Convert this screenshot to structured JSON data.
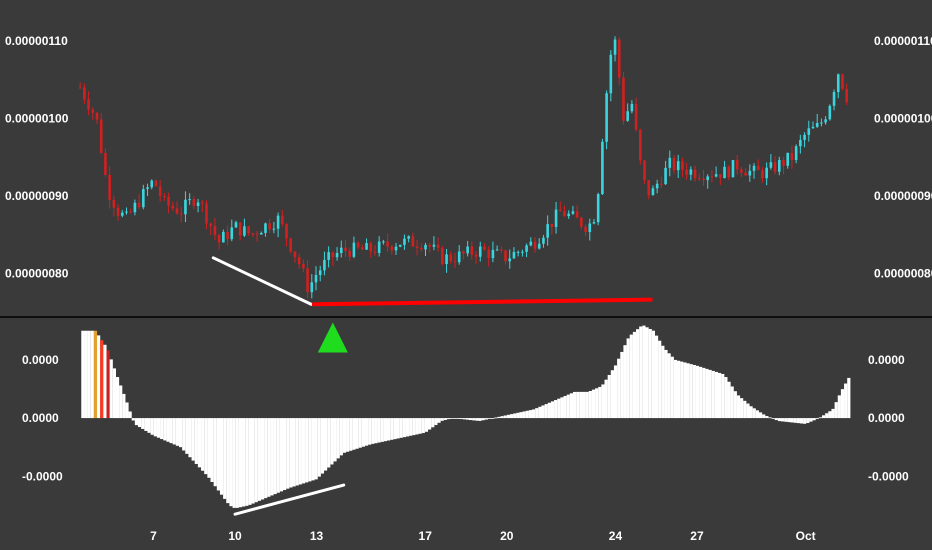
{
  "chart_data": [
    {
      "type": "candlestick",
      "panel": "price",
      "ylim": [
        7.5e-07,
        1.14e-06
      ],
      "y_ticks": [
        {
          "value": 1.1e-06,
          "label": "0.00000110"
        },
        {
          "value": 1e-06,
          "label": "0.00000100"
        },
        {
          "value": 9e-07,
          "label": "0.00000090"
        },
        {
          "value": 8e-07,
          "label": "0.00000080"
        }
      ],
      "x_ticks": [
        {
          "x": 7,
          "label": "7"
        },
        {
          "x": 10,
          "label": "10"
        },
        {
          "x": 13,
          "label": "13"
        },
        {
          "x": 17,
          "label": "17"
        },
        {
          "x": 20,
          "label": "20"
        },
        {
          "x": 24,
          "label": "24"
        },
        {
          "x": 27,
          "label": "27"
        },
        {
          "x": 31,
          "label": "Oct"
        }
      ],
      "x_range": [
        4.0,
        33.0
      ],
      "close_path": [
        [
          4.3,
          1.04e-06
        ],
        [
          4.9,
          1e-06
        ],
        [
          5.3,
          9.1e-07
        ],
        [
          5.7,
          8.8e-07
        ],
        [
          6.0,
          8.7e-07
        ],
        [
          6.6,
          9e-07
        ],
        [
          7.0,
          9.2e-07
        ],
        [
          7.4,
          8.9e-07
        ],
        [
          8.0,
          8.8e-07
        ],
        [
          8.6,
          9e-07
        ],
        [
          9.0,
          8.7e-07
        ],
        [
          9.4,
          8.4e-07
        ],
        [
          10.0,
          8.6e-07
        ],
        [
          10.6,
          8.5e-07
        ],
        [
          11.0,
          8.6e-07
        ],
        [
          11.6,
          8.7e-07
        ],
        [
          12.0,
          8.4e-07
        ],
        [
          12.4,
          8.1e-07
        ],
        [
          12.7,
          7.8e-07
        ],
        [
          13.0,
          8e-07
        ],
        [
          13.5,
          8.2e-07
        ],
        [
          14.0,
          8.3e-07
        ],
        [
          15.0,
          8.3e-07
        ],
        [
          16.0,
          8.4e-07
        ],
        [
          17.0,
          8.4e-07
        ],
        [
          17.6,
          8.2e-07
        ],
        [
          18.0,
          8.2e-07
        ],
        [
          19.0,
          8.3e-07
        ],
        [
          20.0,
          8.2e-07
        ],
        [
          21.0,
          8.4e-07
        ],
        [
          21.5,
          8.6e-07
        ],
        [
          22.0,
          8.8e-07
        ],
        [
          22.5,
          8.7e-07
        ],
        [
          23.0,
          8.6e-07
        ],
        [
          23.3,
          8.8e-07
        ],
        [
          23.5,
          9.7e-07
        ],
        [
          23.8,
          1.08e-06
        ],
        [
          24.0,
          1.1e-06
        ],
        [
          24.3,
          1e-06
        ],
        [
          24.6,
          1.02e-06
        ],
        [
          25.0,
          9.2e-07
        ],
        [
          25.3,
          9e-07
        ],
        [
          25.6,
          9.2e-07
        ],
        [
          26.0,
          9.4e-07
        ],
        [
          27.0,
          9.3e-07
        ],
        [
          28.0,
          9.3e-07
        ],
        [
          28.5,
          9.4e-07
        ],
        [
          29.0,
          9.3e-07
        ],
        [
          29.5,
          9.3e-07
        ],
        [
          30.0,
          9.4e-07
        ],
        [
          30.5,
          9.5e-07
        ],
        [
          31.0,
          9.8e-07
        ],
        [
          31.5,
          9.9e-07
        ],
        [
          31.8,
          1.01e-06
        ],
        [
          32.2,
          1.06e-06
        ],
        [
          32.6,
          1.02e-06
        ]
      ],
      "annotations": [
        {
          "type": "trendline",
          "color": "#ffffff",
          "from": [
            9.2,
            8.2e-07
          ],
          "to": [
            12.8,
            7.6e-07
          ]
        },
        {
          "type": "trendline",
          "color": "#ff0000",
          "from": [
            12.9,
            7.6e-07
          ],
          "to": [
            25.3,
            7.66e-07
          ]
        }
      ]
    },
    {
      "type": "histogram",
      "panel": "oscillator",
      "ylim": [
        -1.75,
        1.65
      ],
      "y_ticks": [
        {
          "value": 1.0,
          "label": "0.0000"
        },
        {
          "value": 0.0,
          "label": "0.0000"
        },
        {
          "value": -1.0,
          "label": "-0.0000"
        }
      ],
      "x_range": [
        4.0,
        33.0
      ],
      "value_path": [
        [
          4.4,
          1.5
        ],
        [
          4.9,
          1.5
        ],
        [
          5.0,
          1.4
        ],
        [
          5.3,
          1.2
        ],
        [
          5.6,
          0.8
        ],
        [
          6.0,
          0.3
        ],
        [
          6.3,
          -0.1
        ],
        [
          7.0,
          -0.3
        ],
        [
          8.0,
          -0.5
        ],
        [
          9.0,
          -1.0
        ],
        [
          9.8,
          -1.5
        ],
        [
          10.0,
          -1.55
        ],
        [
          10.5,
          -1.5
        ],
        [
          11.0,
          -1.4
        ],
        [
          12.0,
          -1.2
        ],
        [
          13.0,
          -1.05
        ],
        [
          14.0,
          -0.6
        ],
        [
          15.0,
          -0.45
        ],
        [
          16.0,
          -0.35
        ],
        [
          17.0,
          -0.25
        ],
        [
          17.6,
          -0.05
        ],
        [
          18.0,
          0.0
        ],
        [
          19.0,
          -0.05
        ],
        [
          20.0,
          0.05
        ],
        [
          21.0,
          0.15
        ],
        [
          22.0,
          0.35
        ],
        [
          22.5,
          0.45
        ],
        [
          23.0,
          0.45
        ],
        [
          23.5,
          0.55
        ],
        [
          24.0,
          0.9
        ],
        [
          24.5,
          1.4
        ],
        [
          25.0,
          1.6
        ],
        [
          25.4,
          1.5
        ],
        [
          25.8,
          1.2
        ],
        [
          26.2,
          1.0
        ],
        [
          27.0,
          0.9
        ],
        [
          28.0,
          0.75
        ],
        [
          28.5,
          0.4
        ],
        [
          29.0,
          0.2
        ],
        [
          29.5,
          0.05
        ],
        [
          30.0,
          -0.05
        ],
        [
          31.0,
          -0.1
        ],
        [
          31.5,
          0.0
        ],
        [
          32.0,
          0.15
        ],
        [
          32.3,
          0.45
        ],
        [
          32.6,
          0.7
        ]
      ],
      "bar_colors_start": [
        {
          "x": 4.9,
          "color": "#e3a22f"
        },
        {
          "x": 5.1,
          "color": "#ff3b1f"
        },
        {
          "x": 5.3,
          "color": "#cc1f1f"
        }
      ],
      "annotations": [
        {
          "type": "trendline",
          "color": "#ffffff",
          "from": [
            10.0,
            -1.65
          ],
          "to": [
            14.0,
            -1.15
          ]
        },
        {
          "type": "marker",
          "shape": "triangle-up",
          "color": "#1fdc1f",
          "at": [
            13.6,
            1.35
          ]
        }
      ]
    }
  ]
}
